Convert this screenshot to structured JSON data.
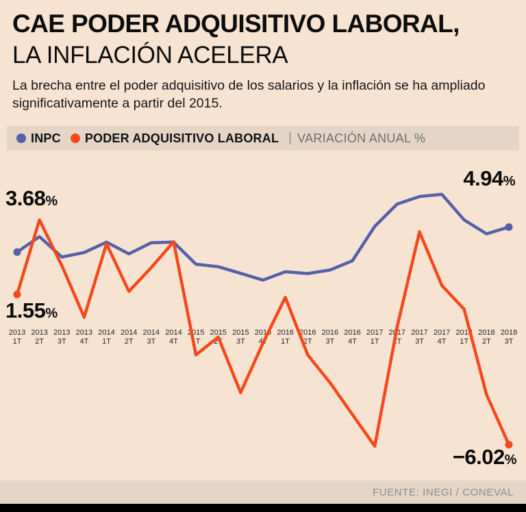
{
  "header": {
    "title_line1": "CAE PODER ADQUISITIVO LABORAL,",
    "title_line2": "LA INFLACIÓN ACELERA",
    "description": "La brecha entre el poder adquisitivo de los salarios y la inflación se ha ampliado significativamente a partir del 2015."
  },
  "legend": {
    "series1_label": "INPC",
    "series2_label": "PODER ADQUISITIVO LABORAL",
    "separator": "|",
    "suffix_label": "VARIACIÓN ANUAL %"
  },
  "annotations": {
    "inpc_start": {
      "value": "3.68",
      "suffix": "%"
    },
    "pal_start": {
      "value": "1.55",
      "suffix": "%"
    },
    "inpc_end": {
      "value": "4.94",
      "suffix": "%"
    },
    "pal_end": {
      "value": "−6.02",
      "suffix": "%"
    }
  },
  "footer": {
    "source": "FUENTE: INEGI / CONEVAL"
  },
  "colors": {
    "background": "#f6e3d2",
    "band": "#e4d5c7",
    "inpc": "#5560a8",
    "pal": "#f5491c",
    "bottom_bar": "#000000"
  },
  "chart_data": {
    "type": "line",
    "title": "CAE PODER ADQUISITIVO LABORAL, LA INFLACIÓN ACELERA",
    "ylabel": "VARIACIÓN ANUAL %",
    "xlabel": "",
    "ylim": [
      -7,
      7
    ],
    "grid": false,
    "legend_position": "top",
    "categories": [
      "2013 1T",
      "2013 2T",
      "2013 3T",
      "2013 4T",
      "2014 1T",
      "2014 2T",
      "2014 3T",
      "2014 4T",
      "2015 1T",
      "2015 2T",
      "2015 3T",
      "2015 4T",
      "2016 1T",
      "2016 2T",
      "2016 3T",
      "2016 4T",
      "2017 1T",
      "2017 2T",
      "2017 3T",
      "2017 4T",
      "2018 1T",
      "2018 2T",
      "2018 3T"
    ],
    "series": [
      {
        "id": "inpc",
        "name": "INPC",
        "color": "#5560a8",
        "values": [
          3.68,
          4.46,
          3.43,
          3.66,
          4.18,
          3.59,
          4.15,
          4.18,
          3.07,
          2.94,
          2.61,
          2.27,
          2.69,
          2.6,
          2.78,
          3.24,
          4.98,
          6.1,
          6.48,
          6.59,
          5.3,
          4.6,
          4.94
        ]
      },
      {
        "id": "pal",
        "name": "PODER ADQUISITIVO LABORAL",
        "color": "#f5491c",
        "values": [
          1.55,
          5.3,
          3.0,
          0.4,
          4.1,
          1.7,
          2.9,
          4.2,
          -1.5,
          -0.6,
          -3.4,
          -0.9,
          1.4,
          -1.5,
          -2.9,
          -4.5,
          -6.1,
          -0.1,
          4.7,
          2.0,
          0.8,
          -3.5,
          -6.02
        ]
      }
    ]
  }
}
